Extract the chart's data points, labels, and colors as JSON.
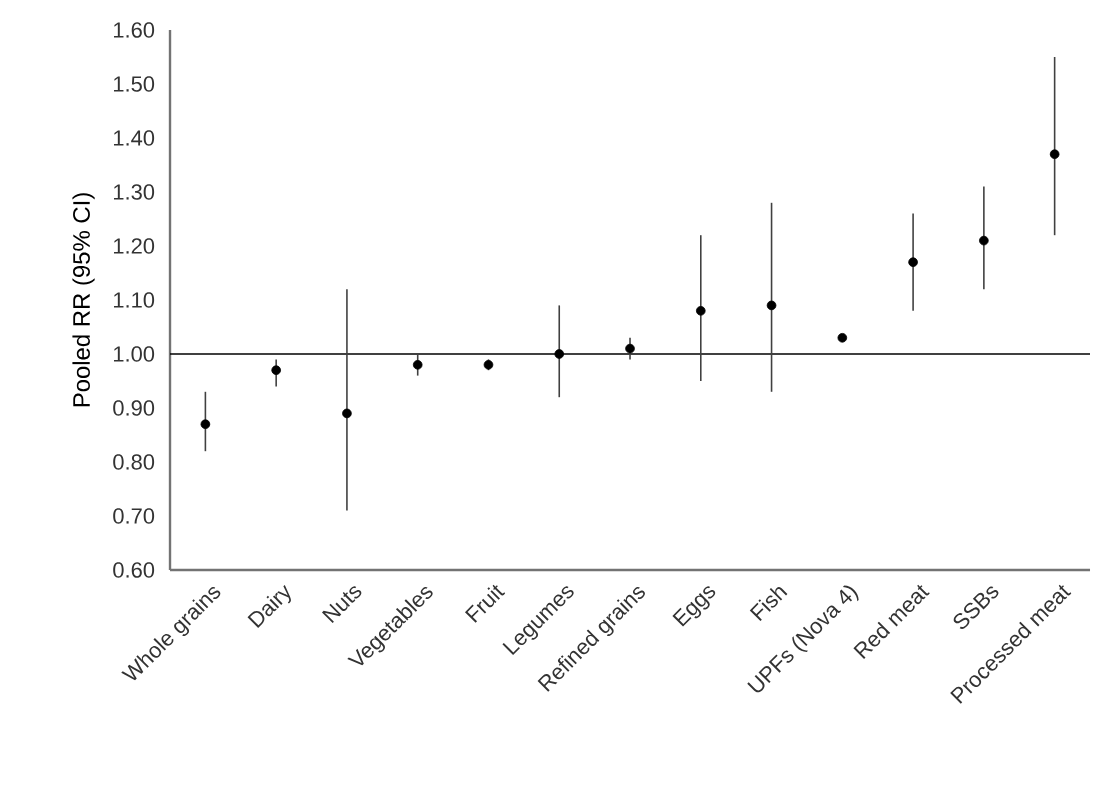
{
  "chart_data": {
    "type": "scatter",
    "ylabel": "Pooled RR (95% CI)",
    "categories": [
      "Whole grains",
      "Dairy",
      "Nuts",
      "Vegetables",
      "Fruit",
      "Legumes",
      "Refined grains",
      "Eggs",
      "Fish",
      "UPFs (Nova 4)",
      "Red meat",
      "SSBs",
      "Processed meat"
    ],
    "values": [
      0.87,
      0.97,
      0.89,
      0.98,
      0.98,
      1.0,
      1.01,
      1.08,
      1.09,
      1.03,
      1.17,
      1.21,
      1.37
    ],
    "errors": [
      [
        0.82,
        0.93
      ],
      [
        0.94,
        0.99
      ],
      [
        0.71,
        1.12
      ],
      [
        0.96,
        1.0
      ],
      [
        0.97,
        0.99
      ],
      [
        0.92,
        1.09
      ],
      [
        0.99,
        1.03
      ],
      [
        0.95,
        1.22
      ],
      [
        0.93,
        1.28
      ],
      null,
      [
        1.08,
        1.26
      ],
      [
        1.12,
        1.31
      ],
      [
        1.22,
        1.55
      ]
    ],
    "color": "#000000",
    "marker": "circle",
    "ylim": [
      0.6,
      1.6
    ],
    "yticks": [
      {
        "value": 0.6,
        "label": "0.60"
      },
      {
        "value": 0.7,
        "label": "0.70"
      },
      {
        "value": 0.8,
        "label": "0.80"
      },
      {
        "value": 0.9,
        "label": "0.90"
      },
      {
        "value": 1.0,
        "label": "1.00"
      },
      {
        "value": 1.1,
        "label": "1.10"
      },
      {
        "value": 1.2,
        "label": "1.20"
      },
      {
        "value": 1.3,
        "label": "1.30"
      },
      {
        "value": 1.4,
        "label": "1.40"
      },
      {
        "value": 1.5,
        "label": "1.50"
      },
      {
        "value": 1.6,
        "label": "1.60"
      }
    ],
    "ref_lines": [
      {
        "axis": "y",
        "value": 1.0,
        "color": "#000000"
      }
    ]
  }
}
